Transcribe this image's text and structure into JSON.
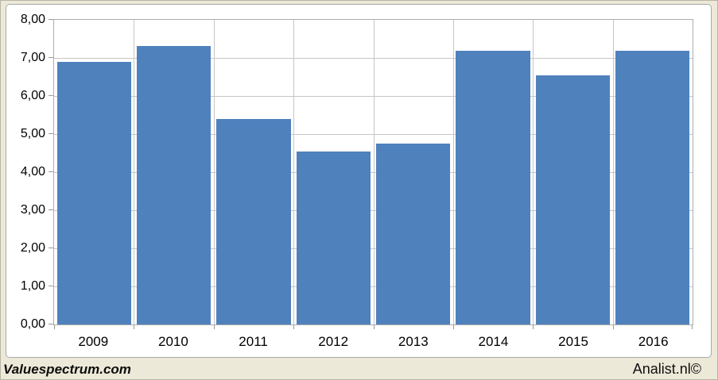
{
  "chart_data": {
    "type": "bar",
    "categories": [
      "2009",
      "2010",
      "2011",
      "2012",
      "2013",
      "2014",
      "2015",
      "2016"
    ],
    "values": [
      6.9,
      7.32,
      5.4,
      4.55,
      4.75,
      7.18,
      6.55,
      7.18
    ],
    "title": "",
    "xlabel": "",
    "ylabel": "",
    "ylim": [
      0,
      8
    ],
    "ytick_step": 1,
    "ytick_labels": [
      "0,00",
      "1,00",
      "2,00",
      "3,00",
      "4,00",
      "5,00",
      "6,00",
      "7,00",
      "8,00"
    ],
    "grid": true,
    "legend": false,
    "bar_color": "#4f81bd"
  },
  "colors": {
    "page_bg": "#ece9d8",
    "chart_bg": "#ffffff",
    "gridline": "#c6c6c6",
    "bar": "#4f81bd"
  },
  "footer": {
    "watermark": "Valuespectrum.com",
    "source": "Analist.nl©"
  }
}
